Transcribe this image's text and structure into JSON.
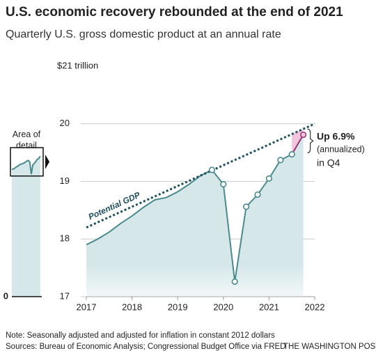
{
  "chart_data": {
    "type": "area",
    "title": "U.S. economic recovery rebounded at the end of 2021",
    "subtitle": "Quarterly U.S. gross domestic product at an annual rate",
    "series": [
      {
        "name": "GDP",
        "color": "#4b8a8c",
        "fill": "#d5e7e9",
        "x": [
          2017,
          2017.25,
          2017.5,
          2017.75,
          2018,
          2018.25,
          2018.5,
          2018.75,
          2019,
          2019.25,
          2019.5,
          2019.75,
          2020,
          2020.25,
          2020.5,
          2020.75,
          2021,
          2021.25,
          2021.5,
          2021.75
        ],
        "values": [
          17.9,
          18.0,
          18.12,
          18.27,
          18.4,
          18.55,
          18.68,
          18.72,
          18.82,
          18.95,
          19.1,
          19.2,
          18.95,
          17.26,
          18.56,
          18.77,
          19.05,
          19.37,
          19.47,
          19.81
        ],
        "markers": [
          false,
          false,
          false,
          false,
          false,
          false,
          false,
          false,
          false,
          false,
          false,
          true,
          true,
          true,
          true,
          true,
          true,
          true,
          true,
          true
        ]
      },
      {
        "name": "Potential GDP",
        "color": "#1f4f5a",
        "dashed": true,
        "x": [
          2017,
          2022
        ],
        "values": [
          18.2,
          20.0
        ]
      }
    ],
    "xlim": [
      2017,
      2022
    ],
    "xticks": [
      2017,
      2018,
      2019,
      2020,
      2021,
      2022
    ],
    "ylim": [
      17,
      21
    ],
    "yticks": [
      17,
      18,
      19,
      20,
      {
        "value": 21,
        "label": "$21 trillion"
      }
    ],
    "highlight_color": "#f4c6de",
    "annotations": [
      "Up 6.9%",
      "(annualized)",
      "in Q4"
    ],
    "inset": {
      "label": "Area of detail",
      "ylim": [
        0,
        21
      ],
      "yticks": [
        0
      ]
    },
    "note": "Note: Seasonally adjusted and adjusted for inflation in constant 2012 dollars",
    "source": "Sources: Bureau of Economic Analysis; Congressional Budget Office via FRED",
    "credit": "THE WASHINGTON POST"
  }
}
